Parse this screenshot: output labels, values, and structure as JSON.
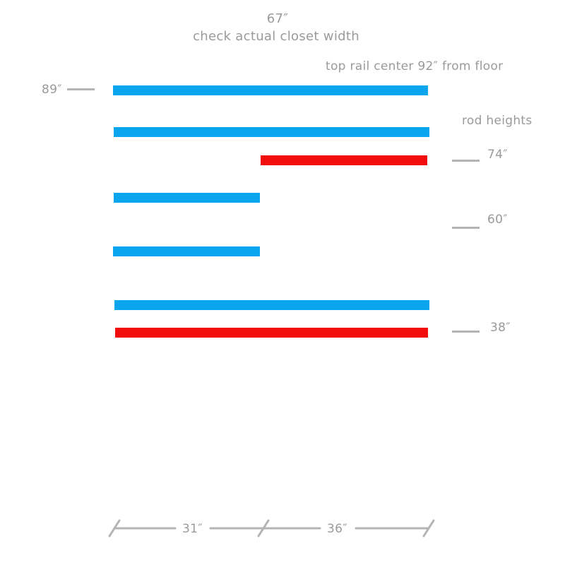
{
  "header": {
    "width_label": "67″",
    "note": "check actual closet width",
    "top_rail_note": "top rail center 92″ from floor",
    "rod_heights_label": "rod heights"
  },
  "height_markers": [
    {
      "label": "89″",
      "side": "left"
    },
    {
      "label": "74″",
      "side": "right"
    },
    {
      "label": "60″",
      "side": "right"
    },
    {
      "label": "38″",
      "side": "right"
    }
  ],
  "dimensions": {
    "left_section": "31″",
    "right_section": "36″"
  },
  "colors": {
    "rail": "#0aa5ef",
    "rod": "#f20d0d",
    "annotation": "#9a9a9a",
    "tick": "#b4b4b4"
  }
}
